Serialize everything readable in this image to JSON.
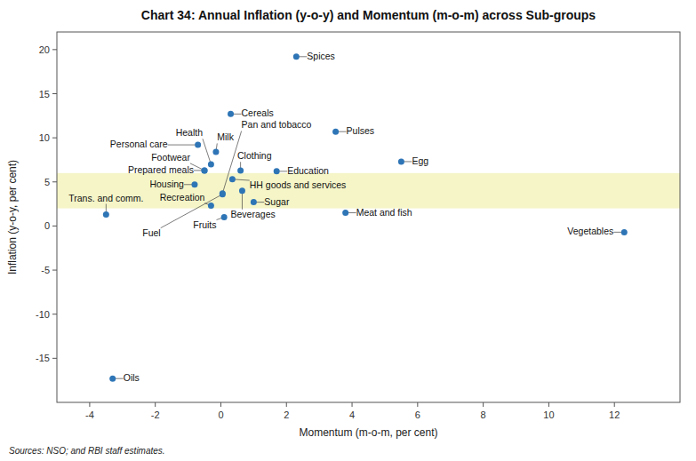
{
  "chart_data": {
    "type": "scatter",
    "title": "Chart 34: Annual Inflation (y-o-y) and Momentum (m-o-m) across Sub-groups",
    "x_label": "Momentum (m-o-m, per cent)",
    "y_label": "Inflation (y-o-y, per cent)",
    "source": "Sources: NSO; and RBI staff estimates.",
    "xlim": [
      -5,
      14
    ],
    "ylim": [
      -20,
      22
    ],
    "xticks": [
      -4,
      -2,
      0,
      2,
      4,
      6,
      8,
      10,
      12
    ],
    "yticks": [
      -15,
      -10,
      -5,
      0,
      5,
      10,
      15,
      20
    ],
    "grid": false,
    "color": "#2e75b6",
    "band": {
      "ymin": 2,
      "ymax": 6,
      "color": "#f5f5c8"
    },
    "labels": [
      "Spices",
      "Cereals",
      "Pulses",
      "Personal care",
      "Milk",
      "Egg",
      "Health",
      "Clothing",
      "Education",
      "Prepared meals",
      "Footwear",
      "HH goods and services",
      "Housing",
      "Beverages",
      "Pan and tobacco",
      "Fuel",
      "Sugar",
      "Recreation",
      "Fruits",
      "Trans. and comm.",
      "Meat and fish",
      "Vegetables",
      "Oils"
    ],
    "x": [
      2.3,
      0.3,
      3.5,
      -0.7,
      -0.15,
      5.5,
      -0.3,
      0.6,
      1.7,
      -0.5,
      -0.5,
      0.35,
      -0.8,
      0.65,
      0.05,
      0.05,
      1.0,
      -0.3,
      0.1,
      -3.5,
      3.8,
      12.3,
      -3.3
    ],
    "values": [
      19.2,
      12.7,
      10.7,
      9.2,
      8.4,
      7.3,
      7.0,
      6.3,
      6.2,
      6.3,
      6.3,
      5.3,
      4.7,
      4.0,
      3.7,
      3.6,
      2.7,
      2.3,
      1.0,
      1.3,
      1.5,
      -0.7,
      -17.3
    ]
  }
}
